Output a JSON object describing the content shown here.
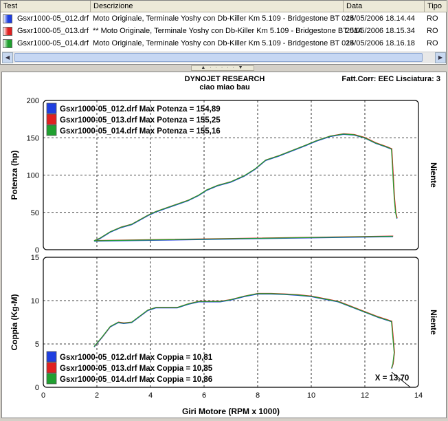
{
  "table": {
    "columns": [
      "Test",
      "Descrizione",
      "Data",
      "Tipo"
    ],
    "rows": [
      {
        "test": "Gsxr1000-05_012.drf",
        "desc": "Moto Originale, Terminale Yoshy con Db-Killer Km 5.109 - Bridgestone BT 014",
        "date": "25/05/2006 18.14.44",
        "type": "RO",
        "color": "#1f3fe0"
      },
      {
        "test": "Gsxr1000-05_013.drf",
        "desc": "** Moto Originale, Terminale Yoshy con Db-Killer Km 5.109 - Bridgestone BT 014",
        "date": "25/05/2006 18.15.34",
        "type": "RO",
        "color": "#e02020"
      },
      {
        "test": "Gsxr1000-05_014.drf",
        "desc": "Moto Originale, Terminale Yoshy con Db-Killer Km 5.109 - Bridgestone BT 014",
        "date": "25/05/2006 18.16.18",
        "type": "RO",
        "color": "#20a030"
      }
    ]
  },
  "chart_header": {
    "brand": "DYNOJET RESEARCH",
    "subtitle": "ciao miao bau",
    "settings": "Fatt.Corr: EEC  Lisciatura: 3"
  },
  "colors": {
    "series": [
      "#1f3fe0",
      "#e02020",
      "#20a030"
    ]
  },
  "chart_data": [
    {
      "type": "line",
      "ylabel": "Potenza (hp)",
      "right_label": "Niente",
      "xlim": [
        0,
        14
      ],
      "ylim": [
        0,
        200
      ],
      "yticks": [
        "0",
        "50",
        "100",
        "150",
        "200"
      ],
      "grid": true,
      "legend_position": "top-left",
      "series": [
        {
          "name": "Gsxr1000-05_012.drf Max Potenza = 154,89"
        },
        {
          "name": "Gsxr1000-05_013.drf Max Potenza = 155,25"
        },
        {
          "name": "Gsxr1000-05_014.drf Max Potenza = 155,16"
        }
      ],
      "x": [
        1.9,
        2.1,
        2.5,
        2.9,
        3.3,
        3.6,
        3.9,
        4.2,
        4.6,
        5.0,
        5.4,
        5.8,
        6.1,
        6.5,
        7.0,
        7.5,
        7.9,
        8.3,
        8.8,
        9.3,
        9.8,
        10.2,
        10.7,
        11.2,
        11.6,
        12.0,
        12.4,
        12.8,
        13.0,
        13.1,
        13.15,
        13.2
      ],
      "y": [
        12,
        15,
        24,
        30,
        34,
        40,
        46,
        51,
        56,
        61,
        66,
        73,
        80,
        86,
        91,
        99,
        108,
        120,
        126,
        133,
        140,
        146,
        152,
        155,
        154,
        150,
        143,
        138,
        135,
        70,
        50,
        42
      ],
      "tail_start": {
        "x": 13.05,
        "y": 18
      }
    },
    {
      "type": "line",
      "xlabel": "Giri Motore (RPM x 1000)",
      "ylabel": "Coppia (Kg-M)",
      "right_label": "Niente",
      "xlim": [
        0,
        14
      ],
      "ylim": [
        0,
        15
      ],
      "xticks": [
        "0",
        "2",
        "4",
        "6",
        "8",
        "10",
        "12",
        "14"
      ],
      "yticks": [
        "0",
        "5",
        "10",
        "15"
      ],
      "grid": true,
      "legend_position": "bottom-left",
      "series": [
        {
          "name": "Gsxr1000-05_012.drf Max Coppia = 10,81"
        },
        {
          "name": "Gsxr1000-05_013.drf Max Coppia = 10,85"
        },
        {
          "name": "Gsxr1000-05_014.drf Max Coppia = 10,86"
        }
      ],
      "x": [
        1.9,
        2.2,
        2.5,
        2.8,
        3.0,
        3.3,
        3.6,
        3.9,
        4.2,
        4.6,
        5.0,
        5.4,
        5.8,
        6.2,
        6.6,
        7.0,
        7.5,
        8.0,
        8.5,
        9.0,
        9.5,
        10.0,
        10.5,
        11.0,
        11.5,
        12.0,
        12.5,
        13.0,
        13.1,
        13.05,
        13.0
      ],
      "y": [
        4.7,
        5.8,
        7.0,
        7.5,
        7.4,
        7.5,
        8.2,
        8.9,
        9.2,
        9.2,
        9.2,
        9.6,
        9.9,
        9.9,
        9.9,
        10.1,
        10.5,
        10.8,
        10.8,
        10.75,
        10.65,
        10.5,
        10.2,
        9.9,
        9.3,
        8.7,
        8.1,
        7.6,
        4.0,
        2.7,
        2.2
      ],
      "cursor_label": "X = 13,70"
    }
  ]
}
